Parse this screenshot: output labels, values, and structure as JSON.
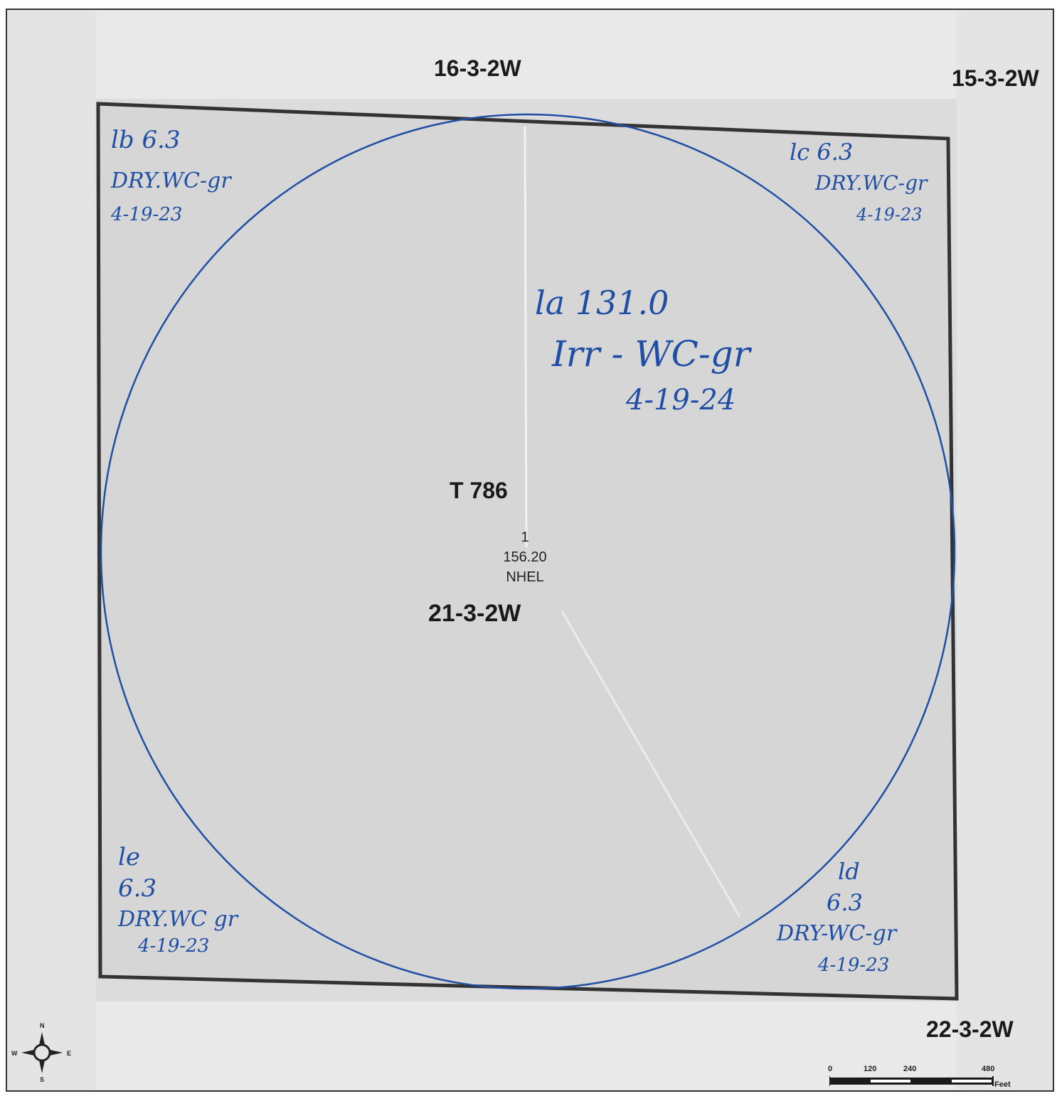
{
  "sections": {
    "north": "16-3-2W",
    "northeast": "15-3-2W",
    "center": "21-3-2W",
    "southeast": "22-3-2W"
  },
  "tract": {
    "label": "T 786"
  },
  "field": {
    "number": "1",
    "acres": "156.20",
    "hel_status": "NHEL"
  },
  "subfields": {
    "1a": {
      "id_acres": "la 131.0",
      "use": "Irr - WC-gr",
      "date": "4-19-24"
    },
    "1b": {
      "id_acres": "lb 6.3",
      "use": "DRY.WC-gr",
      "date": "4-19-23"
    },
    "1c": {
      "id_acres": "lc 6.3",
      "use": "DRY.WC-gr",
      "date": "4-19-23"
    },
    "1d": {
      "id": "ld",
      "acres": "6.3",
      "use": "DRY-WC-gr",
      "date": "4-19-23"
    },
    "1e": {
      "id": "le",
      "acres": "6.3",
      "use": "DRY.WC gr",
      "date": "4-19-23"
    }
  },
  "scale_bar": {
    "ticks": [
      "0",
      "120",
      "240",
      "480"
    ],
    "unit": "Feet"
  },
  "compass": {
    "n": "N",
    "s": "S",
    "e": "E",
    "w": "W"
  },
  "colors": {
    "boundary": "#333333",
    "handwriting": "#1f4fa5",
    "field_fill": "#d6d6d6"
  }
}
